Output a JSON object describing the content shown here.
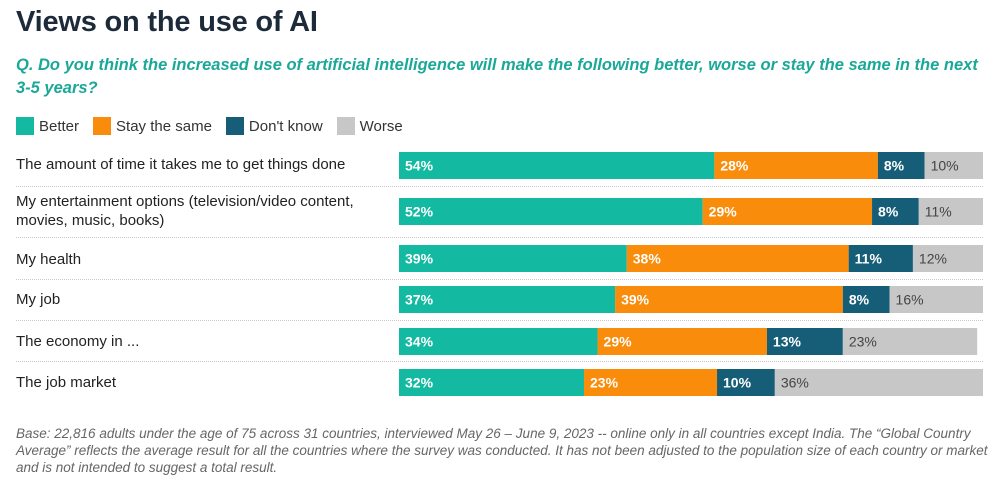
{
  "title": "Views on the use of AI",
  "question": "Q. Do you think the increased use of artificial intelligence will make the following better, worse or stay the same in the next 3-5 years?",
  "colors": {
    "better": "#13b9a0",
    "stay_same": "#f98c0a",
    "dont_know": "#165e78",
    "worse": "#c7c7c7",
    "title": "#1d2a3a",
    "question": "#1aa898"
  },
  "legend": [
    {
      "label": "Better",
      "color": "#13b9a0"
    },
    {
      "label": "Stay the same",
      "color": "#f98c0a"
    },
    {
      "label": "Don't know",
      "color": "#165e78"
    },
    {
      "label": "Worse",
      "color": "#c7c7c7"
    }
  ],
  "chart_data": {
    "type": "bar",
    "orientation": "horizontal",
    "stacked": true,
    "title": "Views on the use of AI",
    "xlabel": "",
    "ylabel": "",
    "xlim": [
      0,
      100
    ],
    "grid": false,
    "legend_position": "top-left",
    "categories": [
      "The amount of time it takes me to get things done",
      "My entertainment options (television/video content, movies, music, books)",
      "My health",
      "My job",
      "The economy in ...",
      "The job market"
    ],
    "series": [
      {
        "name": "Better",
        "values": [
          54,
          52,
          39,
          37,
          34,
          32
        ]
      },
      {
        "name": "Stay the same",
        "values": [
          28,
          29,
          38,
          39,
          29,
          23
        ]
      },
      {
        "name": "Don't know",
        "values": [
          8,
          8,
          11,
          8,
          13,
          10
        ]
      },
      {
        "name": "Worse",
        "values": [
          10,
          11,
          12,
          16,
          23,
          36
        ]
      }
    ],
    "value_suffix": "%"
  },
  "footnote": "Base: 22,816 adults under the age of 75 across 31 countries, interviewed May 26 – June 9, 2023 -- online only in all countries except India. The “Global Country Average” reflects the average result for all the countries where the survey was conducted. It has not been adjusted to the population size of each country or market and is not intended to suggest a total result."
}
